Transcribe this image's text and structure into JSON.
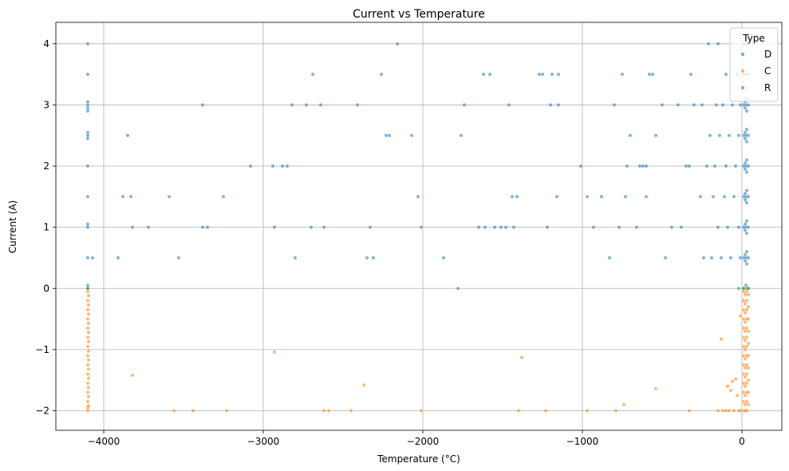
{
  "chart_data": {
    "type": "scatter",
    "title": "Current vs Temperature",
    "xlabel": "Temperature (°C)",
    "ylabel": "Current (A)",
    "xlim": [
      -4300,
      250
    ],
    "ylim": [
      -2.32,
      4.35
    ],
    "xticks": [
      -4000,
      -3000,
      -2000,
      -1000,
      0
    ],
    "xtick_labels": [
      "−4000",
      "−3000",
      "−2000",
      "−1000",
      "0"
    ],
    "yticks": [
      -2,
      -1,
      0,
      1,
      2,
      3,
      4
    ],
    "ytick_labels": [
      "−2",
      "−1",
      "0",
      "1",
      "2",
      "3",
      "4"
    ],
    "grid": true,
    "legend": {
      "title": "Type",
      "position": "top-right"
    },
    "series": [
      {
        "name": "D",
        "color": "#1f77b4",
        "points": [
          [
            -4100,
            4.0
          ],
          [
            -4100,
            3.5
          ],
          [
            -4100,
            3.05
          ],
          [
            -4100,
            3.0
          ],
          [
            -4100,
            2.95
          ],
          [
            -4100,
            2.9
          ],
          [
            -4100,
            2.55
          ],
          [
            -4100,
            2.5
          ],
          [
            -4100,
            2.45
          ],
          [
            -4100,
            2.0
          ],
          [
            -4100,
            1.5
          ],
          [
            -4100,
            1.05
          ],
          [
            -4100,
            1.0
          ],
          [
            -4100,
            0.5
          ],
          [
            -4100,
            0.05
          ],
          [
            -4100,
            0.0
          ],
          [
            -4070,
            0.5
          ],
          [
            -3910,
            0.5
          ],
          [
            -3880,
            1.5
          ],
          [
            -3850,
            2.5
          ],
          [
            -3830,
            1.5
          ],
          [
            -3820,
            1.0
          ],
          [
            -3720,
            1.0
          ],
          [
            -3590,
            1.5
          ],
          [
            -3530,
            0.5
          ],
          [
            -3380,
            3.0
          ],
          [
            -3380,
            1.0
          ],
          [
            -3350,
            1.0
          ],
          [
            -3250,
            1.5
          ],
          [
            -3080,
            2.0
          ],
          [
            -2940,
            2.0
          ],
          [
            -2930,
            1.0
          ],
          [
            -2880,
            2.0
          ],
          [
            -2850,
            2.0
          ],
          [
            -2820,
            3.0
          ],
          [
            -2800,
            0.5
          ],
          [
            -2730,
            3.0
          ],
          [
            -2700,
            1.0
          ],
          [
            -2690,
            3.5
          ],
          [
            -2640,
            3.0
          ],
          [
            -2620,
            1.0
          ],
          [
            -2410,
            3.0
          ],
          [
            -2350,
            0.5
          ],
          [
            -2330,
            1.0
          ],
          [
            -2310,
            0.5
          ],
          [
            -2260,
            3.5
          ],
          [
            -2230,
            2.5
          ],
          [
            -2210,
            2.5
          ],
          [
            -2160,
            4.0
          ],
          [
            -2070,
            2.5
          ],
          [
            -2030,
            1.5
          ],
          [
            -2010,
            1.0
          ],
          [
            -1870,
            0.5
          ],
          [
            -1760,
            2.5
          ],
          [
            -1740,
            3.0
          ],
          [
            -1650,
            1.0
          ],
          [
            -1620,
            3.5
          ],
          [
            -1610,
            1.0
          ],
          [
            -1580,
            3.5
          ],
          [
            -1550,
            1.0
          ],
          [
            -1510,
            1.0
          ],
          [
            -1480,
            1.0
          ],
          [
            -1460,
            3.0
          ],
          [
            -1440,
            1.5
          ],
          [
            -1430,
            1.0
          ],
          [
            -1410,
            1.5
          ],
          [
            -1270,
            3.5
          ],
          [
            -1250,
            3.5
          ],
          [
            -1220,
            1.0
          ],
          [
            -1200,
            3.0
          ],
          [
            -1190,
            3.5
          ],
          [
            -1160,
            1.5
          ],
          [
            -1150,
            3.0
          ],
          [
            -1150,
            3.5
          ],
          [
            -1010,
            2.0
          ],
          [
            -970,
            1.5
          ],
          [
            -930,
            1.0
          ],
          [
            -880,
            1.5
          ],
          [
            -830,
            0.5
          ],
          [
            -800,
            3.0
          ],
          [
            -770,
            1.0
          ],
          [
            -750,
            3.5
          ],
          [
            -730,
            1.5
          ],
          [
            -720,
            2.0
          ],
          [
            -700,
            2.5
          ],
          [
            -660,
            1.0
          ],
          [
            -640,
            2.0
          ],
          [
            -620,
            2.0
          ],
          [
            -600,
            2.0
          ],
          [
            -600,
            1.5
          ],
          [
            -580,
            3.5
          ],
          [
            -560,
            3.5
          ],
          [
            -540,
            2.5
          ],
          [
            -500,
            3.0
          ],
          [
            -480,
            0.5
          ],
          [
            -440,
            1.0
          ],
          [
            -400,
            3.0
          ],
          [
            -380,
            1.0
          ],
          [
            -350,
            2.0
          ],
          [
            -330,
            2.0
          ],
          [
            -320,
            3.5
          ],
          [
            -300,
            3.0
          ],
          [
            -260,
            1.5
          ],
          [
            -250,
            3.0
          ],
          [
            -240,
            0.5
          ],
          [
            -220,
            2.0
          ],
          [
            -210,
            4.0
          ],
          [
            -200,
            2.5
          ],
          [
            -190,
            0.5
          ],
          [
            -180,
            1.5
          ],
          [
            -170,
            2.0
          ],
          [
            -160,
            3.0
          ],
          [
            -150,
            1.0
          ],
          [
            -150,
            4.0
          ],
          [
            -140,
            2.5
          ],
          [
            -130,
            0.5
          ],
          [
            -120,
            3.0
          ],
          [
            -110,
            1.5
          ],
          [
            -100,
            2.0
          ],
          [
            -100,
            3.5
          ],
          [
            -90,
            1.0
          ],
          [
            -80,
            2.5
          ],
          [
            -70,
            0.5
          ],
          [
            -60,
            3.0
          ],
          [
            -60,
            4.0
          ],
          [
            -50,
            1.5
          ],
          [
            -40,
            2.0
          ],
          [
            -30,
            3.5
          ],
          [
            -20,
            1.0
          ],
          [
            -20,
            2.5
          ],
          [
            -10,
            0.5
          ],
          [
            -10,
            3.0
          ],
          [
            10,
            4.0
          ],
          [
            10,
            3.5
          ],
          [
            10,
            3.0
          ],
          [
            10,
            2.5
          ],
          [
            10,
            2.0
          ],
          [
            10,
            1.5
          ],
          [
            10,
            1.0
          ],
          [
            10,
            0.5
          ],
          [
            10,
            0.0
          ],
          [
            20,
            3.05
          ],
          [
            20,
            2.95
          ],
          [
            20,
            2.55
          ],
          [
            20,
            2.45
          ],
          [
            20,
            2.05
          ],
          [
            20,
            1.95
          ],
          [
            20,
            1.55
          ],
          [
            20,
            1.45
          ],
          [
            20,
            1.05
          ],
          [
            20,
            0.95
          ],
          [
            20,
            0.55
          ],
          [
            20,
            0.45
          ],
          [
            25,
            4.0
          ],
          [
            25,
            3.5
          ],
          [
            25,
            3.0
          ],
          [
            25,
            2.5
          ],
          [
            25,
            2.0
          ],
          [
            25,
            1.5
          ],
          [
            25,
            1.0
          ],
          [
            25,
            0.5
          ],
          [
            25,
            0.05
          ],
          [
            30,
            3.1
          ],
          [
            30,
            2.9
          ],
          [
            30,
            2.6
          ],
          [
            30,
            2.4
          ],
          [
            30,
            2.1
          ],
          [
            30,
            1.9
          ],
          [
            30,
            1.6
          ],
          [
            30,
            1.4
          ],
          [
            30,
            1.1
          ],
          [
            30,
            0.9
          ],
          [
            30,
            0.6
          ],
          [
            30,
            0.4
          ],
          [
            40,
            4.0
          ],
          [
            40,
            3.5
          ],
          [
            40,
            3.0
          ],
          [
            40,
            2.5
          ],
          [
            40,
            2.0
          ],
          [
            40,
            1.5
          ],
          [
            40,
            1.0
          ],
          [
            40,
            0.5
          ],
          [
            40,
            0.0
          ]
        ]
      },
      {
        "name": "C",
        "color": "#ff7f0e",
        "points": [
          [
            -4100,
            -0.05
          ],
          [
            -4100,
            -0.2
          ],
          [
            -4100,
            -0.35
          ],
          [
            -4100,
            -0.5
          ],
          [
            -4100,
            -0.65
          ],
          [
            -4100,
            -0.8
          ],
          [
            -4100,
            -0.95
          ],
          [
            -4100,
            -1.1
          ],
          [
            -4100,
            -1.25
          ],
          [
            -4100,
            -1.4
          ],
          [
            -4100,
            -1.55
          ],
          [
            -4100,
            -1.7
          ],
          [
            -4100,
            -1.85
          ],
          [
            -4100,
            -1.95
          ],
          [
            -4100,
            -2.0
          ],
          [
            -4095,
            -0.12
          ],
          [
            -4095,
            -0.27
          ],
          [
            -4095,
            -0.42
          ],
          [
            -4095,
            -0.57
          ],
          [
            -4095,
            -0.72
          ],
          [
            -4095,
            -0.87
          ],
          [
            -4095,
            -1.02
          ],
          [
            -4095,
            -1.17
          ],
          [
            -4095,
            -1.32
          ],
          [
            -4095,
            -1.47
          ],
          [
            -4095,
            -1.62
          ],
          [
            -4095,
            -1.77
          ],
          [
            -4095,
            -1.92
          ],
          [
            -3820,
            -1.42
          ],
          [
            -3560,
            -2.0
          ],
          [
            -3440,
            -2.0
          ],
          [
            -3230,
            -2.0
          ],
          [
            -2930,
            -1.04
          ],
          [
            -2620,
            -2.0
          ],
          [
            -2590,
            -2.0
          ],
          [
            -2450,
            -2.0
          ],
          [
            -2370,
            -1.58
          ],
          [
            -2010,
            -2.0
          ],
          [
            -1400,
            -2.0
          ],
          [
            -1380,
            -1.13
          ],
          [
            -1230,
            -2.0
          ],
          [
            -970,
            -2.0
          ],
          [
            -790,
            -2.0
          ],
          [
            -740,
            -1.9
          ],
          [
            -540,
            -1.64
          ],
          [
            -330,
            -2.0
          ],
          [
            -150,
            -2.0
          ],
          [
            -130,
            -0.83
          ],
          [
            -120,
            -2.0
          ],
          [
            -100,
            -2.0
          ],
          [
            -90,
            -1.6
          ],
          [
            -80,
            -2.0
          ],
          [
            -70,
            -1.67
          ],
          [
            -60,
            -1.52
          ],
          [
            -50,
            -2.0
          ],
          [
            -40,
            -1.48
          ],
          [
            -30,
            -1.75
          ],
          [
            -20,
            -2.0
          ],
          [
            -10,
            -0.45
          ],
          [
            -10,
            -2.0
          ],
          [
            10,
            -0.05
          ],
          [
            10,
            -0.2
          ],
          [
            10,
            -0.35
          ],
          [
            10,
            -0.5
          ],
          [
            10,
            -0.65
          ],
          [
            10,
            -0.8
          ],
          [
            10,
            -0.95
          ],
          [
            10,
            -1.1
          ],
          [
            10,
            -1.25
          ],
          [
            10,
            -1.4
          ],
          [
            10,
            -1.55
          ],
          [
            10,
            -1.7
          ],
          [
            10,
            -1.85
          ],
          [
            10,
            -2.0
          ],
          [
            20,
            -0.1
          ],
          [
            20,
            -0.25
          ],
          [
            20,
            -0.4
          ],
          [
            20,
            -0.55
          ],
          [
            20,
            -0.7
          ],
          [
            20,
            -0.85
          ],
          [
            20,
            -1.0
          ],
          [
            20,
            -1.15
          ],
          [
            20,
            -1.3
          ],
          [
            20,
            -1.45
          ],
          [
            20,
            -1.6
          ],
          [
            20,
            -1.75
          ],
          [
            20,
            -1.9
          ],
          [
            20,
            -2.0
          ],
          [
            30,
            -0.05
          ],
          [
            30,
            -0.2
          ],
          [
            30,
            -0.35
          ],
          [
            30,
            -0.5
          ],
          [
            30,
            -0.65
          ],
          [
            30,
            -0.8
          ],
          [
            30,
            -0.95
          ],
          [
            30,
            -1.1
          ],
          [
            30,
            -1.25
          ],
          [
            30,
            -1.4
          ],
          [
            30,
            -1.55
          ],
          [
            30,
            -1.7
          ],
          [
            30,
            -1.85
          ],
          [
            30,
            -2.0
          ],
          [
            40,
            -0.1
          ],
          [
            40,
            -0.3
          ],
          [
            40,
            -0.5
          ],
          [
            40,
            -0.7
          ],
          [
            40,
            -0.9
          ],
          [
            40,
            -1.1
          ],
          [
            40,
            -1.3
          ],
          [
            40,
            -1.5
          ],
          [
            40,
            -1.7
          ],
          [
            40,
            -1.9
          ]
        ]
      },
      {
        "name": "R",
        "color": "#2ca02c",
        "points": [
          [
            -4100,
            0.0
          ],
          [
            -1780,
            0.0
          ],
          [
            -20,
            0.0
          ],
          [
            10,
            0.0
          ],
          [
            30,
            0.0
          ],
          [
            40,
            0.0
          ]
        ]
      }
    ]
  }
}
